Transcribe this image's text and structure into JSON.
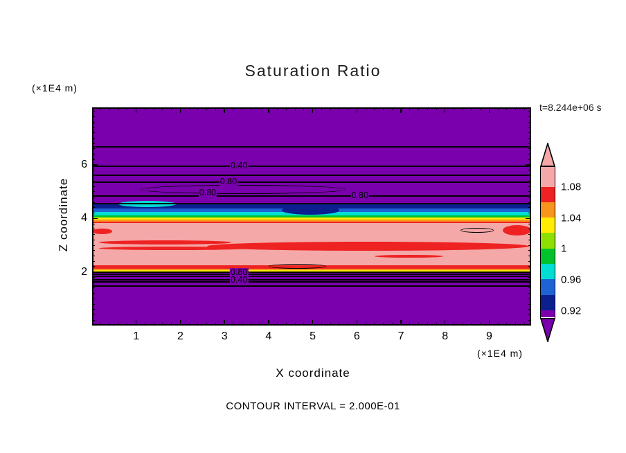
{
  "title": "Saturation Ratio",
  "annotations": {
    "y_axis_unit": "(×1E4 m)",
    "x_axis_unit": "(×1E4 m)",
    "time": "t=8.244e+06 s",
    "xlabel": "X coordinate",
    "ylabel": "Z coordinate",
    "contour_note": "CONTOUR INTERVAL = 2.000E-01"
  },
  "chart_data": {
    "type": "heatmap",
    "title": "Saturation Ratio",
    "xlabel": "X coordinate",
    "ylabel": "Z coordinate",
    "x_unit": "×1E4 m",
    "z_unit": "×1E4 m",
    "time_annotation": "t=8.244e+06 s",
    "contour_interval": 0.2,
    "xlim": [
      0,
      9.95
    ],
    "zlim": [
      0,
      8.15
    ],
    "x_ticks": [
      1,
      2,
      3,
      4,
      5,
      6,
      7,
      8,
      9
    ],
    "z_ticks": [
      2,
      4,
      6
    ],
    "minor_tick_step": 0.2,
    "palette": {
      "purple": "#7a00ad",
      "navy": "#0c1f8f",
      "blue": "#1e63d4",
      "cyan": "#00ddd2",
      "green": "#00c22d",
      "green_light": "#8ee000",
      "yellow": "#ffec00",
      "orange": "#f8951d",
      "red": "#ee2222",
      "pink": "#f5a8a8"
    },
    "colorbar": {
      "tick_labels": [
        "1.08",
        "1.04",
        "1",
        "0.96",
        "0.92"
      ],
      "segments": [
        {
          "range": "> 1.08",
          "color": "pink"
        },
        {
          "range": "1.06 - 1.08",
          "color": "red"
        },
        {
          "range": "1.04 - 1.06",
          "color": "orange"
        },
        {
          "range": "1.02 - 1.04",
          "color": "yellow"
        },
        {
          "range": "1.00 - 1.02",
          "color": "green_light"
        },
        {
          "range": "0.98 - 1.00",
          "color": "green"
        },
        {
          "range": "0.96 - 0.98",
          "color": "cyan"
        },
        {
          "range": "0.94 - 0.96",
          "color": "blue"
        },
        {
          "range": "0.92 - 0.94",
          "color": "navy"
        },
        {
          "range": "< 0.92",
          "color": "purple"
        }
      ]
    },
    "bands": [
      {
        "z_from": 4.53,
        "z_to": 8.15,
        "color": "purple",
        "value": "< 0.92"
      },
      {
        "z_from": 4.37,
        "z_to": 4.53,
        "color": "navy",
        "value": "0.92 - 0.94"
      },
      {
        "z_from": 4.24,
        "z_to": 4.37,
        "color": "blue",
        "value": "0.94 - 0.96"
      },
      {
        "z_from": 4.11,
        "z_to": 4.24,
        "color": "cyan",
        "value": "0.96 - 0.98"
      },
      {
        "z_from": 4.04,
        "z_to": 4.11,
        "color": "green",
        "value": "0.98 - 1.00"
      },
      {
        "z_from": 3.96,
        "z_to": 4.04,
        "color": "yellow",
        "value": "1.02 - 1.04"
      },
      {
        "z_from": 3.89,
        "z_to": 3.96,
        "color": "orange",
        "value": "1.04 - 1.06"
      },
      {
        "z_from": 3.83,
        "z_to": 3.89,
        "color": "red",
        "value": "1.06 - 1.08"
      },
      {
        "z_from": 2.25,
        "z_to": 3.83,
        "color": "pink",
        "value": "> 1.08"
      },
      {
        "z_from": 2.12,
        "z_to": 2.25,
        "color": "red",
        "value": "1.06 - 1.08"
      },
      {
        "z_from": 2.07,
        "z_to": 2.12,
        "color": "orange",
        "value": "1.04 - 1.06"
      },
      {
        "z_from": 2.02,
        "z_to": 2.07,
        "color": "yellow",
        "value": "1.02 - 1.04"
      },
      {
        "z_from": 0,
        "z_to": 2.02,
        "color": "purple",
        "value": "< 0.92"
      }
    ],
    "blobs": [
      {
        "x0": 0.15,
        "x1": 3.15,
        "z0": 3.02,
        "z1": 3.17,
        "color": "red"
      },
      {
        "x0": 0.15,
        "x1": 3.55,
        "z0": 2.82,
        "z1": 2.96,
        "color": "red"
      },
      {
        "x0": 2.6,
        "x1": 9.9,
        "z0": 2.79,
        "z1": 3.13,
        "color": "red"
      },
      {
        "x0": 9.3,
        "x1": 9.95,
        "z0": 3.36,
        "z1": 3.75,
        "color": "red"
      },
      {
        "x0": 0.0,
        "x1": 0.45,
        "z0": 3.42,
        "z1": 3.62,
        "color": "red"
      },
      {
        "x0": 6.4,
        "x1": 7.95,
        "z0": 2.53,
        "z1": 2.65,
        "color": "red"
      },
      {
        "x0": 4.3,
        "x1": 5.6,
        "z0": 4.14,
        "z1": 4.47,
        "color": "navy"
      },
      {
        "x0": 0.6,
        "x1": 1.9,
        "z0": 4.42,
        "z1": 4.66,
        "color": "cyan"
      }
    ],
    "closed_contours": [
      {
        "x0": 1.1,
        "x1": 5.75,
        "z0": 4.91,
        "z1": 5.24
      },
      {
        "x0": 8.35,
        "x1": 9.1,
        "z0": 3.47,
        "z1": 3.66
      },
      {
        "x0": 4.0,
        "x1": 5.3,
        "z0": 2.12,
        "z1": 2.31
      }
    ],
    "contour_lines": [
      {
        "z": 6.67
      },
      {
        "z": 5.95
      },
      {
        "z": 5.61
      },
      {
        "z": 5.36
      },
      {
        "z": 4.84
      },
      {
        "z": 4.55
      },
      {
        "z": 1.99,
        "w": 2.5
      },
      {
        "z": 1.91
      },
      {
        "z": 1.84
      },
      {
        "z": 1.71
      },
      {
        "z": 1.63
      },
      {
        "z": 1.47
      }
    ],
    "contour_labels": [
      {
        "text": "0.40",
        "x": 3.33,
        "z": 5.95
      },
      {
        "text": "0.80",
        "x": 3.09,
        "z": 5.36
      },
      {
        "text": "0.80",
        "x": 2.62,
        "z": 4.93
      },
      {
        "text": "0.80",
        "x": 6.07,
        "z": 4.84
      },
      {
        "text": "0.80",
        "x": 3.33,
        "z": 1.97
      },
      {
        "text": "0.40",
        "x": 3.33,
        "z": 1.68
      }
    ]
  }
}
